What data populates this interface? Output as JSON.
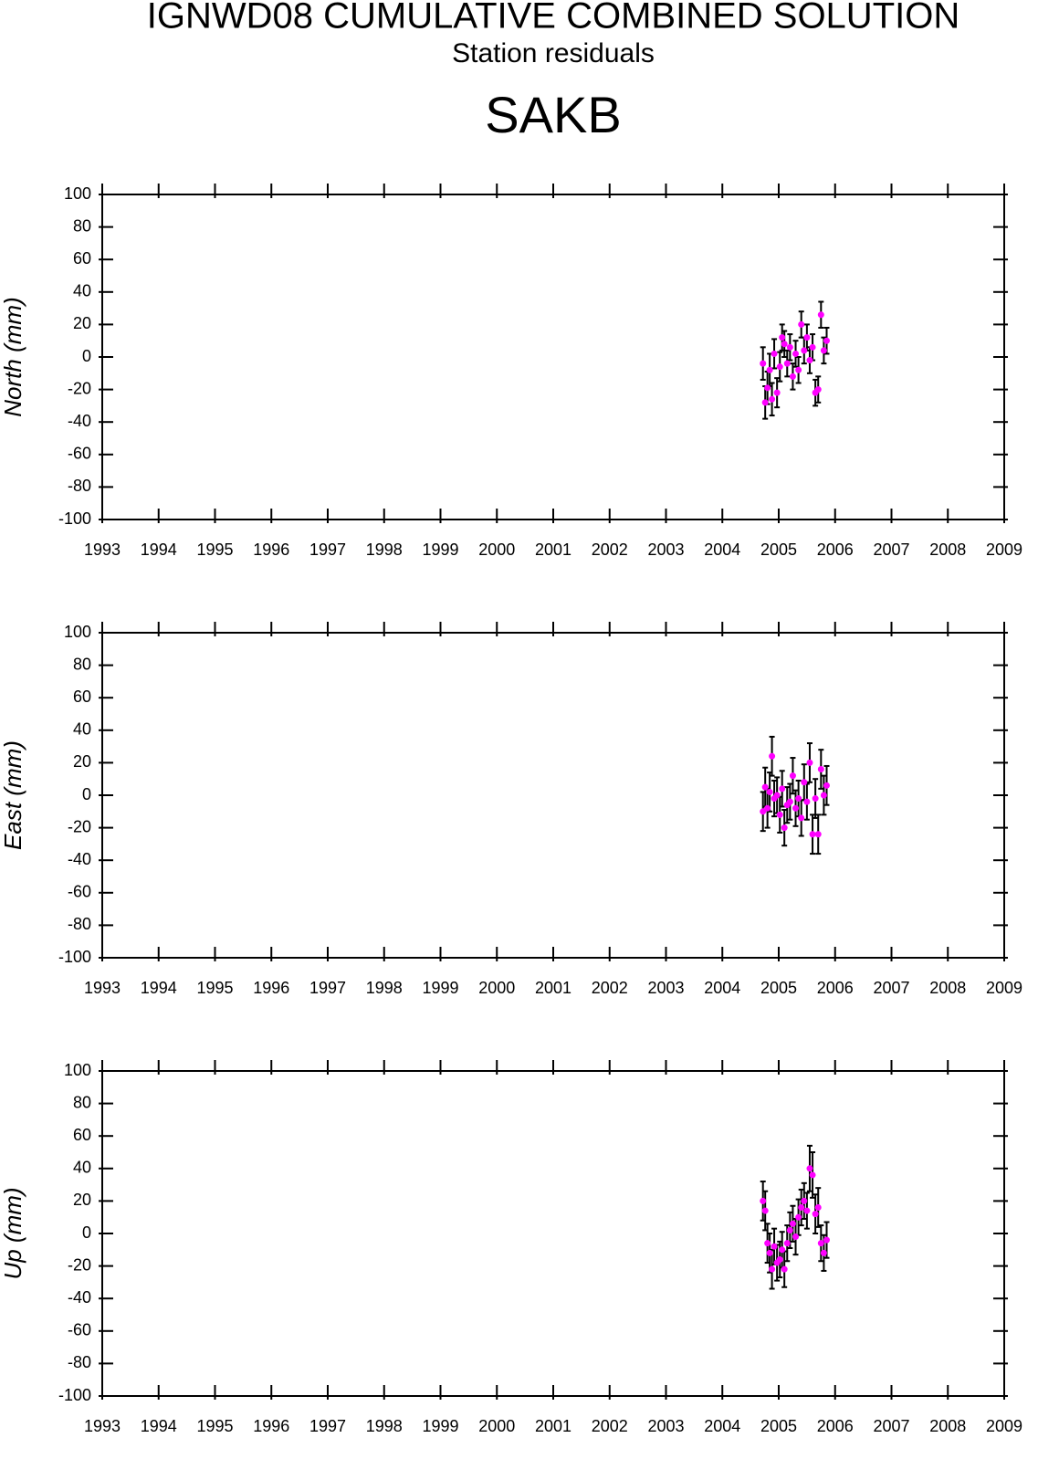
{
  "title": "IGNWD08 CUMULATIVE COMBINED SOLUTION",
  "subtitle": "Station residuals",
  "station": "SAKB",
  "chart_data": [
    {
      "type": "scatter",
      "y_label": "North (mm)",
      "x": [
        2004.72,
        2004.76,
        2004.8,
        2004.84,
        2004.88,
        2004.92,
        2004.97,
        2005.02,
        2005.06,
        2005.1,
        2005.15,
        2005.2,
        2005.25,
        2005.3,
        2005.35,
        2005.4,
        2005.45,
        2005.5,
        2005.55,
        2005.6,
        2005.65,
        2005.7,
        2005.75,
        2005.8,
        2005.85
      ],
      "series": [
        {
          "color": "#ff00ff",
          "error_color": "#000000",
          "values": [
            -4,
            -28,
            -19,
            -8,
            -26,
            2,
            -22,
            -6,
            12,
            8,
            -4,
            6,
            -12,
            2,
            -8,
            20,
            4,
            12,
            -2,
            6,
            -22,
            -20,
            26,
            4,
            10
          ],
          "errors": [
            10,
            10,
            10,
            10,
            10,
            9,
            9,
            9,
            8,
            8,
            8,
            8,
            8,
            8,
            8,
            8,
            8,
            8,
            8,
            8,
            8,
            8,
            8,
            8,
            8
          ]
        }
      ],
      "xlim": [
        1993,
        2009
      ],
      "xticks": [
        1993,
        1994,
        1995,
        1996,
        1997,
        1998,
        1999,
        2000,
        2001,
        2002,
        2003,
        2004,
        2005,
        2006,
        2007,
        2008,
        2009
      ],
      "ylim": [
        -100,
        100
      ],
      "yticks": [
        -100,
        -80,
        -60,
        -40,
        -20,
        0,
        20,
        40,
        60,
        80,
        100
      ]
    },
    {
      "type": "scatter",
      "y_label": "East (mm)",
      "x": [
        2004.72,
        2004.76,
        2004.8,
        2004.84,
        2004.88,
        2004.92,
        2004.97,
        2005.02,
        2005.06,
        2005.1,
        2005.15,
        2005.2,
        2005.25,
        2005.3,
        2005.35,
        2005.4,
        2005.45,
        2005.5,
        2005.55,
        2005.6,
        2005.65,
        2005.7,
        2005.75,
        2005.8,
        2005.85
      ],
      "series": [
        {
          "color": "#ff00ff",
          "error_color": "#000000",
          "values": [
            -10,
            5,
            -8,
            2,
            24,
            -2,
            0,
            -12,
            4,
            -20,
            -6,
            -4,
            12,
            -8,
            -2,
            -14,
            8,
            -4,
            20,
            -24,
            -2,
            -24,
            16,
            0,
            6
          ],
          "errors": [
            12,
            12,
            12,
            12,
            12,
            11,
            11,
            11,
            11,
            11,
            11,
            11,
            11,
            11,
            11,
            11,
            11,
            11,
            12,
            12,
            12,
            12,
            12,
            12,
            12
          ]
        }
      ],
      "xlim": [
        1993,
        2009
      ],
      "xticks": [
        1993,
        1994,
        1995,
        1996,
        1997,
        1998,
        1999,
        2000,
        2001,
        2002,
        2003,
        2004,
        2005,
        2006,
        2007,
        2008,
        2009
      ],
      "ylim": [
        -100,
        100
      ],
      "yticks": [
        -100,
        -80,
        -60,
        -40,
        -20,
        0,
        20,
        40,
        60,
        80,
        100
      ]
    },
    {
      "type": "scatter",
      "y_label": "Up (mm)",
      "x": [
        2004.72,
        2004.76,
        2004.8,
        2004.84,
        2004.88,
        2004.92,
        2004.97,
        2005.02,
        2005.06,
        2005.1,
        2005.15,
        2005.2,
        2005.25,
        2005.3,
        2005.35,
        2005.4,
        2005.45,
        2005.5,
        2005.55,
        2005.6,
        2005.65,
        2005.7,
        2005.75,
        2005.8,
        2005.85
      ],
      "series": [
        {
          "color": "#ff00ff",
          "error_color": "#000000",
          "values": [
            20,
            14,
            -6,
            -12,
            -22,
            -8,
            -18,
            -16,
            -10,
            -22,
            -6,
            2,
            6,
            -2,
            10,
            16,
            20,
            14,
            40,
            36,
            12,
            16,
            -6,
            -12,
            -4
          ],
          "errors": [
            12,
            12,
            12,
            12,
            12,
            11,
            11,
            11,
            11,
            11,
            11,
            11,
            11,
            11,
            11,
            11,
            11,
            11,
            14,
            14,
            12,
            12,
            11,
            11,
            11
          ]
        }
      ],
      "xlim": [
        1993,
        2009
      ],
      "xticks": [
        1993,
        1994,
        1995,
        1996,
        1997,
        1998,
        1999,
        2000,
        2001,
        2002,
        2003,
        2004,
        2005,
        2006,
        2007,
        2008,
        2009
      ],
      "ylim": [
        -100,
        100
      ],
      "yticks": [
        -100,
        -80,
        -60,
        -40,
        -20,
        0,
        20,
        40,
        60,
        80,
        100
      ]
    }
  ]
}
